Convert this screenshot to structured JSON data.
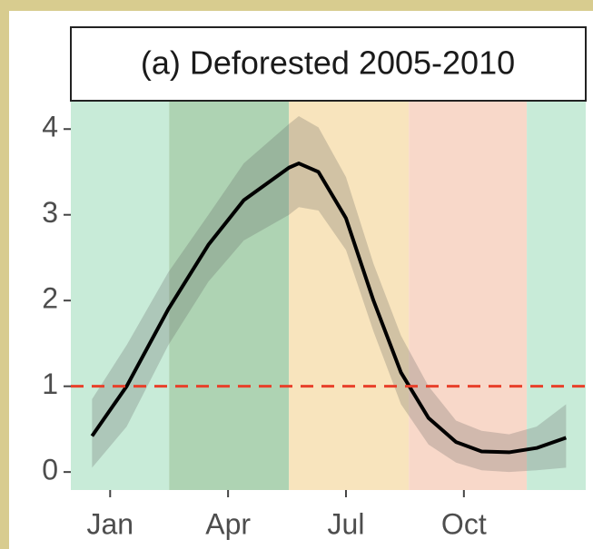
{
  "chart_data": {
    "type": "line",
    "title": "(a) Deforested 2005-2010",
    "xlim": [
      0,
      13.1
    ],
    "ylim": [
      -0.21,
      4.32
    ],
    "xticks": [
      {
        "value": 1,
        "label": "Jan"
      },
      {
        "value": 4,
        "label": "Apr"
      },
      {
        "value": 7,
        "label": "Jul"
      },
      {
        "value": 10,
        "label": "Oct"
      }
    ],
    "yticks": [
      0,
      1,
      2,
      3,
      4
    ],
    "bands": [
      {
        "from": 0,
        "to": 2.5,
        "color": "#c8ebd8"
      },
      {
        "from": 2.5,
        "to": 5.55,
        "color": "#aed3b3"
      },
      {
        "from": 5.55,
        "to": 8.6,
        "color": "#f8e4bd"
      },
      {
        "from": 8.6,
        "to": 11.6,
        "color": "#f8d8c9"
      },
      {
        "from": 11.6,
        "to": 13.1,
        "color": "#c8ebd8"
      }
    ],
    "hline": {
      "value": 1,
      "color": "#e8402a"
    },
    "x": [
      0.54,
      1.42,
      2.48,
      3.5,
      4.4,
      5.55,
      5.8,
      6.3,
      7.0,
      7.7,
      8.4,
      9.1,
      9.8,
      10.45,
      11.15,
      11.85,
      12.6
    ],
    "series": [
      {
        "color": "#000000",
        "band_color": "rgba(90,90,90,0.25)",
        "values": [
          0.42,
          1.0,
          1.9,
          2.65,
          3.17,
          3.55,
          3.6,
          3.5,
          2.96,
          2.0,
          1.16,
          0.63,
          0.35,
          0.24,
          0.23,
          0.28,
          0.4
        ],
        "lower": [
          0.05,
          0.53,
          1.48,
          2.22,
          2.7,
          3.0,
          3.09,
          3.05,
          2.59,
          1.64,
          0.79,
          0.32,
          0.11,
          0.02,
          0.0,
          0.02,
          0.05
        ],
        "upper": [
          0.85,
          1.48,
          2.33,
          3.0,
          3.6,
          4.06,
          4.15,
          4.02,
          3.44,
          2.43,
          1.59,
          1.0,
          0.6,
          0.48,
          0.44,
          0.53,
          0.79
        ]
      }
    ]
  }
}
